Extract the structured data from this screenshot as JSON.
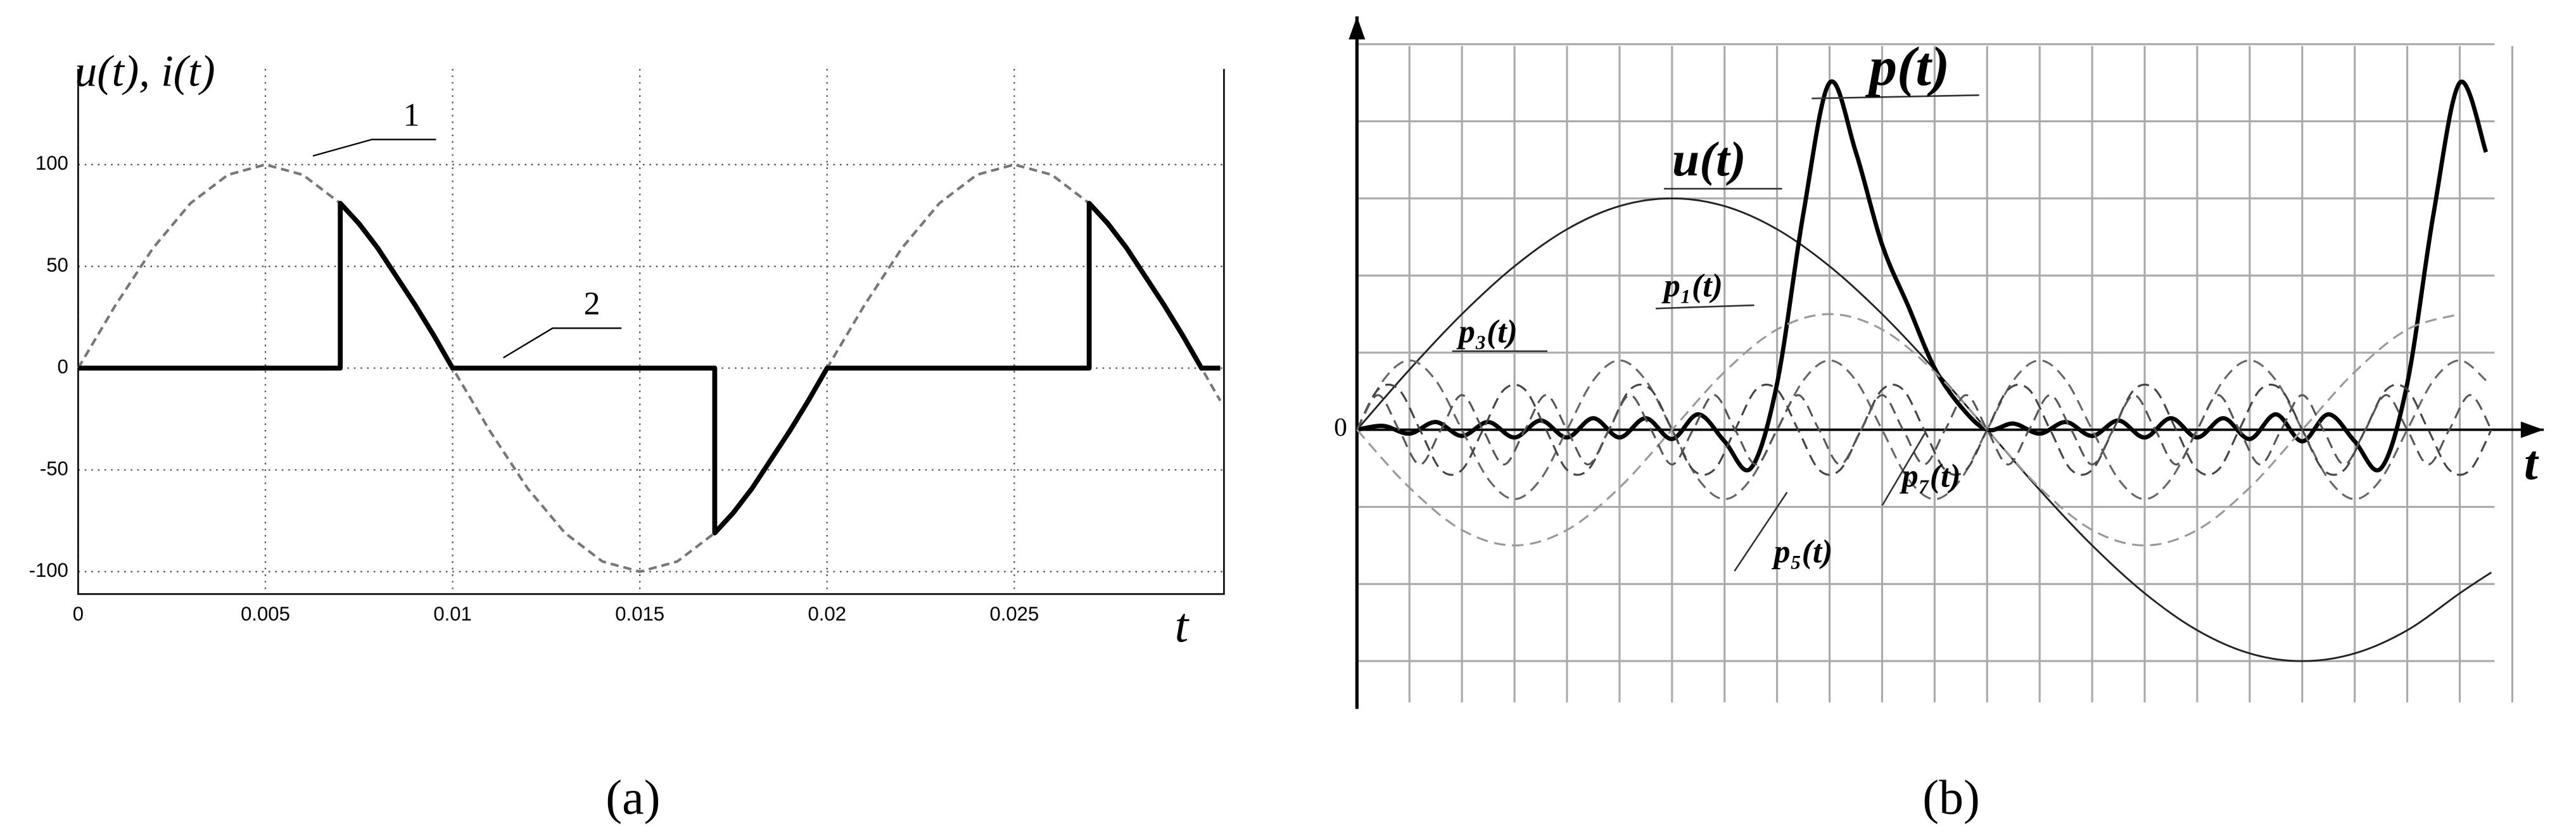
{
  "chart_data": [
    {
      "type": "line",
      "y_label": "u(t), i(t)",
      "x_label": "t",
      "caption": "(a)",
      "annotations": [
        "1",
        "2"
      ],
      "xlim": [
        0,
        0.0306
      ],
      "ylim": [
        -111,
        147
      ],
      "xticks": [
        0,
        0.005,
        0.01,
        0.015,
        0.02,
        0.025
      ],
      "yticks": [
        -100,
        -50,
        0,
        50,
        100
      ],
      "grid": true,
      "series": [
        {
          "color": "#777777",
          "dash": "5 3",
          "width": 1.6,
          "x": [
            0,
            0.001,
            0.002,
            0.003,
            0.004,
            0.005,
            0.006,
            0.007,
            0.008,
            0.009,
            0.01,
            0.011,
            0.012,
            0.013,
            0.014,
            0.015,
            0.016,
            0.017,
            0.018,
            0.019,
            0.02,
            0.021,
            0.022,
            0.023,
            0.024,
            0.025,
            0.026,
            0.027,
            0.028,
            0.029,
            0.03,
            0.0305
          ],
          "values": [
            0,
            31,
            59,
            81,
            95,
            100,
            95,
            81,
            59,
            31,
            0,
            -31,
            -59,
            -81,
            -95,
            -100,
            -95,
            -81,
            -59,
            -31,
            0,
            31,
            59,
            81,
            95,
            100,
            95,
            81,
            59,
            31,
            0,
            -16
          ]
        },
        {
          "color": "#000000",
          "dash": "none",
          "width": 3,
          "x": [
            0,
            0.007,
            0.007,
            0.0075,
            0.008,
            0.0085,
            0.009,
            0.0095,
            0.01,
            0.017,
            0.017,
            0.0175,
            0.018,
            0.0185,
            0.019,
            0.0195,
            0.02,
            0.027,
            0.027,
            0.0275,
            0.028,
            0.0285,
            0.029,
            0.0295,
            0.03,
            0.0305
          ],
          "values": [
            0,
            0,
            81,
            71,
            59,
            45,
            31,
            16,
            0,
            0,
            -81,
            -71,
            -59,
            -45,
            -31,
            -16,
            0,
            0,
            81,
            71,
            59,
            45,
            31,
            16,
            0,
            0
          ]
        }
      ]
    },
    {
      "type": "line",
      "smooth": true,
      "x_label": "t",
      "caption": "(b)",
      "xlim": [
        0,
        22.6
      ],
      "ylim": [
        -3.62,
        5.36
      ],
      "yticks": [
        0
      ],
      "grid": true,
      "series": [
        {
          "name": "u(t)",
          "color": "#222222",
          "dash": "none",
          "width": 1.1,
          "x": [
            0,
            1,
            2,
            3,
            4,
            5,
            6,
            7,
            8,
            9,
            10,
            11,
            12,
            13,
            14,
            15,
            16,
            17,
            18,
            19,
            20,
            21,
            21.6
          ],
          "values": [
            0,
            0.78,
            1.5,
            2.12,
            2.6,
            2.9,
            3,
            2.9,
            2.6,
            2.12,
            1.5,
            0.78,
            0,
            -0.78,
            -1.5,
            -2.12,
            -2.6,
            -2.9,
            -3,
            -2.9,
            -2.6,
            -2.12,
            -1.85
          ]
        },
        {
          "name": "p(t)",
          "color": "#000000",
          "dash": "none",
          "width": 2.6,
          "x": [
            0,
            0.5,
            1,
            1.5,
            2,
            2.5,
            3,
            3.5,
            4,
            4.5,
            5,
            5.5,
            6,
            6.5,
            7,
            7.5,
            8,
            8.5,
            9,
            9.5,
            10,
            10.5,
            11,
            11.5,
            12,
            12.5,
            13,
            13.5,
            14,
            14.5,
            15,
            15.5,
            16,
            16.5,
            17,
            17.5,
            18,
            18.5,
            19,
            19.5,
            20,
            20.5,
            21,
            21.5
          ],
          "values": [
            0,
            0.05,
            -0.05,
            0.1,
            -0.08,
            0.1,
            -0.1,
            0.12,
            -0.1,
            0.15,
            -0.1,
            0.15,
            -0.12,
            0.2,
            -0.15,
            -0.5,
            0.6,
            2.8,
            4.5,
            3.6,
            2.4,
            1.6,
            0.8,
            0.3,
            0,
            0.08,
            -0.05,
            0.1,
            -0.08,
            0.12,
            -0.1,
            0.15,
            -0.1,
            0.15,
            -0.12,
            0.2,
            -0.15,
            0.2,
            -0.15,
            -0.5,
            0.6,
            2.8,
            4.5,
            3.6
          ]
        },
        {
          "name": "p₁(t)",
          "color": "#999999",
          "dash": "7 4",
          "width": 1.2,
          "x": [
            0,
            1,
            2,
            3,
            4,
            5,
            6,
            7,
            8,
            9,
            10,
            11,
            12,
            13,
            14,
            15,
            16,
            17,
            18,
            19,
            20,
            21
          ],
          "values": [
            0,
            -0.75,
            -1.3,
            -1.5,
            -1.3,
            -0.75,
            0,
            0.75,
            1.3,
            1.5,
            1.3,
            0.75,
            0,
            -0.75,
            -1.3,
            -1.5,
            -1.3,
            -0.75,
            0,
            0.75,
            1.3,
            1.5
          ]
        },
        {
          "name": "p₃(t)",
          "color": "#666666",
          "dash": "7 4",
          "width": 1.2,
          "x": [
            0,
            0.5,
            1,
            1.5,
            2,
            2.5,
            3,
            3.5,
            4,
            4.5,
            5,
            5.5,
            6,
            6.5,
            7,
            7.5,
            8,
            8.5,
            9,
            9.5,
            10,
            10.5,
            11,
            11.5,
            12,
            12.5,
            13,
            13.5,
            14,
            14.5,
            15,
            15.5,
            16,
            16.5,
            17,
            17.5,
            18,
            18.5,
            19,
            19.5,
            20,
            20.5,
            21,
            21.5
          ],
          "values": [
            0,
            0.64,
            0.9,
            0.64,
            0,
            -0.64,
            -0.9,
            -0.64,
            0,
            0.64,
            0.9,
            0.64,
            0,
            -0.64,
            -0.9,
            -0.64,
            0,
            0.64,
            0.9,
            0.64,
            0,
            -0.64,
            -0.9,
            -0.64,
            0,
            0.64,
            0.9,
            0.64,
            0,
            -0.64,
            -0.9,
            -0.64,
            0,
            0.64,
            0.9,
            0.64,
            0,
            -0.64,
            -0.9,
            -0.64,
            0,
            0.64,
            0.9,
            0.64
          ]
        },
        {
          "name": "p₅(t)",
          "color": "#444444",
          "dash": "7 4",
          "width": 1.2,
          "x": [
            0,
            0.4,
            0.8,
            1.2,
            1.6,
            2,
            2.4,
            2.8,
            3.2,
            3.6,
            4,
            4.4,
            4.8,
            5.2,
            5.6,
            6,
            6.4,
            6.8,
            7.2,
            7.6,
            8,
            8.4,
            8.8,
            9.2,
            9.6,
            10,
            10.4,
            10.8,
            11.2,
            11.6,
            12,
            12.4,
            12.8,
            13.2,
            13.6,
            14,
            14.4,
            14.8,
            15.2,
            15.6,
            16,
            16.4,
            16.8,
            17.2,
            17.6,
            18,
            18.4,
            18.8,
            19.2,
            19.6,
            20,
            20.4,
            20.8,
            21.2,
            21.6
          ],
          "values": [
            0,
            0.52,
            0.52,
            0,
            -0.52,
            -0.52,
            0,
            0.52,
            0.52,
            0,
            -0.52,
            -0.52,
            0,
            0.52,
            0.52,
            0,
            -0.52,
            -0.52,
            0,
            0.52,
            0.52,
            0,
            -0.52,
            -0.52,
            0,
            0.52,
            0.52,
            0,
            -0.52,
            -0.52,
            0,
            0.52,
            0.52,
            0,
            -0.52,
            -0.52,
            0,
            0.52,
            0.52,
            0,
            -0.52,
            -0.52,
            0,
            0.52,
            0.52,
            0,
            -0.52,
            -0.52,
            0,
            0.52,
            0.52,
            0,
            -0.52,
            -0.52,
            0
          ]
        },
        {
          "name": "p₇(t)",
          "color": "#555555",
          "dash": "7 4",
          "width": 1.2,
          "x": [
            0,
            0.4,
            0.8,
            1.2,
            1.6,
            2,
            2.4,
            2.8,
            3.2,
            3.6,
            4,
            4.4,
            4.8,
            5.2,
            5.6,
            6,
            6.4,
            6.8,
            7.2,
            7.6,
            8,
            8.4,
            8.8,
            9.2,
            9.6,
            10,
            10.4,
            10.8,
            11.2,
            11.6,
            12,
            12.4,
            12.8,
            13.2,
            13.6,
            14,
            14.4,
            14.8,
            15.2,
            15.6,
            16,
            16.4,
            16.8,
            17.2,
            17.6,
            18,
            18.4,
            18.8,
            19.2,
            19.6,
            20,
            20.4,
            20.8,
            21.2,
            21.6
          ],
          "values": [
            0,
            0.45,
            0,
            -0.45,
            0,
            0.45,
            0,
            -0.45,
            0,
            0.45,
            0,
            -0.45,
            0,
            0.45,
            0,
            -0.45,
            0,
            0.45,
            0,
            -0.45,
            0,
            0.45,
            0,
            -0.45,
            0,
            0.45,
            0,
            -0.45,
            0,
            0.45,
            0,
            -0.45,
            0,
            0.45,
            0,
            -0.45,
            0,
            0.45,
            0,
            -0.45,
            0,
            0.45,
            0,
            -0.45,
            0,
            0.45,
            0,
            -0.45,
            0,
            0.45,
            0,
            -0.45,
            0,
            0.45,
            0
          ]
        }
      ]
    }
  ]
}
